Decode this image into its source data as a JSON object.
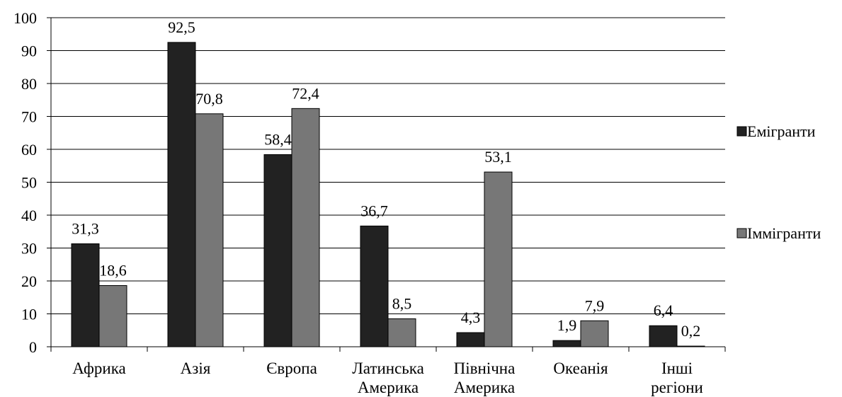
{
  "chart_data": {
    "type": "bar",
    "categories": [
      [
        "Африка"
      ],
      [
        "Азія"
      ],
      [
        "Європа"
      ],
      [
        "Латинська",
        "Америка"
      ],
      [
        "Північна",
        "Америка"
      ],
      [
        "Океанія"
      ],
      [
        "Інші",
        "регіони"
      ]
    ],
    "series": [
      {
        "name": "Емігранти",
        "color": "#222222",
        "values": [
          31.3,
          92.5,
          58.4,
          36.7,
          4.3,
          1.9,
          6.4
        ],
        "labels": [
          "31,3",
          "92,5",
          "58,4",
          "36,7",
          "4,3",
          "1,9",
          "6,4"
        ]
      },
      {
        "name": "Іммігранти",
        "color": "#777777",
        "values": [
          18.6,
          70.8,
          72.4,
          8.5,
          53.1,
          7.9,
          0.2
        ],
        "labels": [
          "18,6",
          "70,8",
          "72,4",
          "8,5",
          "53,1",
          "7,9",
          "0,2"
        ]
      }
    ],
    "yticks": [
      0,
      10,
      20,
      30,
      40,
      50,
      60,
      70,
      80,
      90,
      100
    ],
    "ylim": [
      0,
      100
    ],
    "grid": true,
    "legend_position": "right"
  }
}
